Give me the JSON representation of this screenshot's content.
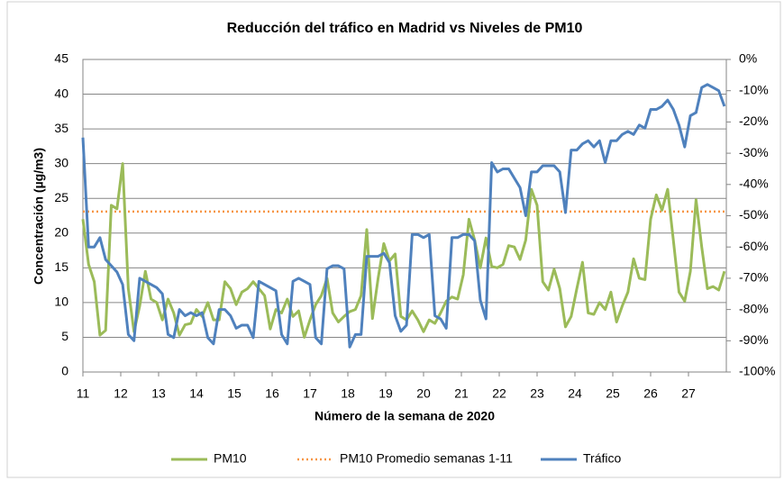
{
  "chart_data": {
    "type": "line",
    "title": "Reducción del tráfico en Madrid vs Niveles de PM10",
    "x_label": "Número de la semana de 2020",
    "y_label": "Concentración (µg/m3)",
    "xlim": [
      11,
      28
    ],
    "xticks": [
      11,
      12,
      13,
      14,
      15,
      16,
      17,
      18,
      19,
      20,
      21,
      22,
      23,
      24,
      25,
      26,
      27
    ],
    "ylim": [
      0,
      45
    ],
    "yticks": [
      0,
      5,
      10,
      15,
      20,
      25,
      30,
      35,
      40,
      45
    ],
    "y2lim": [
      -100,
      0
    ],
    "y2ticks": [
      {
        "value": 0,
        "label": "0%"
      },
      {
        "value": -10,
        "label": "-10%"
      },
      {
        "value": -20,
        "label": "-20%"
      },
      {
        "value": -30,
        "label": "-30%"
      },
      {
        "value": -40,
        "label": "-40%"
      },
      {
        "value": -50,
        "label": "-50%"
      },
      {
        "value": -60,
        "label": "-60%"
      },
      {
        "value": -70,
        "label": "-70%"
      },
      {
        "value": -80,
        "label": "-80%"
      },
      {
        "value": -90,
        "label": "-90%"
      },
      {
        "value": -100,
        "label": "-100%"
      }
    ],
    "grid": true,
    "legend": "bottom",
    "x": [
      11,
      11.15,
      11.3,
      11.45,
      11.6,
      11.75,
      11.9,
      12.05,
      12.2,
      12.35,
      12.5,
      12.65,
      12.8,
      12.95,
      13.1,
      13.25,
      13.4,
      13.55,
      13.7,
      13.85,
      14,
      14.15,
      14.3,
      14.45,
      14.6,
      14.75,
      14.9,
      15.05,
      15.2,
      15.35,
      15.5,
      15.65,
      15.8,
      15.95,
      16.1,
      16.25,
      16.4,
      16.55,
      16.7,
      16.85,
      17,
      17.15,
      17.3,
      17.45,
      17.6,
      17.75,
      17.9,
      18.05,
      18.2,
      18.35,
      18.5,
      18.65,
      18.8,
      18.95,
      19.1,
      19.25,
      19.4,
      19.55,
      19.7,
      19.85,
      20,
      20.15,
      20.3,
      20.45,
      20.6,
      20.75,
      20.9,
      21.05,
      21.2,
      21.35,
      21.5,
      21.65,
      21.8,
      21.95,
      22.1,
      22.25,
      22.4,
      22.55,
      22.7,
      22.85,
      23,
      23.15,
      23.3,
      23.45,
      23.6,
      23.75,
      23.9,
      24.05,
      24.2,
      24.35,
      24.5,
      24.65,
      24.8,
      24.95,
      25.1,
      25.25,
      25.4,
      25.55,
      25.7,
      25.85,
      26,
      26.15,
      26.3,
      26.45,
      26.6,
      26.75,
      26.9,
      27.05,
      27.2,
      27.35,
      27.5,
      27.65,
      27.8,
      27.95
    ],
    "series": [
      {
        "name": "PM10",
        "color": "#9bbb59",
        "axis": "y",
        "values": [
          22,
          15.5,
          13,
          5.3,
          6,
          24,
          23.5,
          30,
          12,
          5.8,
          9.5,
          14.5,
          10.5,
          10,
          7.5,
          10.5,
          8.5,
          5.3,
          6.8,
          7,
          9,
          8,
          10,
          7.5,
          7.5,
          13,
          12,
          9.7,
          11.5,
          12,
          13,
          12,
          11,
          6.2,
          9,
          8.5,
          10.5,
          8,
          8.8,
          5,
          7.5,
          9.7,
          11,
          13.5,
          8.5,
          7.2,
          8,
          8.7,
          9,
          11,
          20.5,
          7.7,
          13.5,
          18.5,
          16,
          17,
          8,
          7.5,
          8.8,
          7.5,
          5.8,
          7.5,
          7,
          8.5,
          10.2,
          10.8,
          10.5,
          14,
          22,
          19,
          15,
          19.3,
          15.2,
          15,
          15.5,
          18.2,
          18,
          16.2,
          19,
          26.3,
          24,
          13,
          11.8,
          14.8,
          12,
          6.5,
          8,
          12,
          15.8,
          8.5,
          8.3,
          10,
          9,
          11.5,
          7.2,
          9.5,
          11.5,
          16.3,
          13.5,
          13.3,
          22,
          25.5,
          23.3,
          26.3,
          19,
          11.5,
          10.2,
          14.5,
          24.8,
          18,
          12,
          12.3,
          11.8,
          14.5
        ]
      },
      {
        "name": "Tráfico",
        "color": "#4f81bd",
        "axis": "y2",
        "values": [
          -25,
          -60,
          -60,
          -57,
          -64,
          -66,
          -68,
          -72,
          -88,
          -90,
          -70,
          -71,
          -72,
          -73,
          -75,
          -88,
          -89,
          -80,
          -82,
          -81,
          -82,
          -81,
          -89,
          -91,
          -80,
          -80,
          -82,
          -86,
          -85,
          -85,
          -89,
          -71,
          -72,
          -73,
          -74,
          -88,
          -91,
          -71,
          -70,
          -71,
          -72,
          -89,
          -91,
          -67,
          -66,
          -66,
          -67,
          -92,
          -88,
          -88,
          -63,
          -63,
          -63,
          -62,
          -65,
          -82,
          -87,
          -85,
          -56,
          -56,
          -57,
          -56,
          -82,
          -83,
          -86,
          -57,
          -57,
          -56,
          -56,
          -58,
          -77,
          -83,
          -33,
          -36,
          -35,
          -35,
          -38,
          -41,
          -50,
          -36,
          -36,
          -34,
          -34,
          -34,
          -36,
          -49,
          -29,
          -29,
          -27,
          -26,
          -28,
          -26,
          -33,
          -26,
          -26,
          -24,
          -23,
          -24,
          -21,
          -22,
          -16,
          -16,
          -15,
          -13,
          -16,
          -21,
          -28,
          -18,
          -17,
          -9,
          -8,
          -9,
          -10,
          -15
        ]
      }
    ],
    "reference_line": {
      "name": "PM10  Promedio semanas 1-11",
      "color": "#f79646",
      "value": 23.1,
      "axis": "y"
    }
  }
}
